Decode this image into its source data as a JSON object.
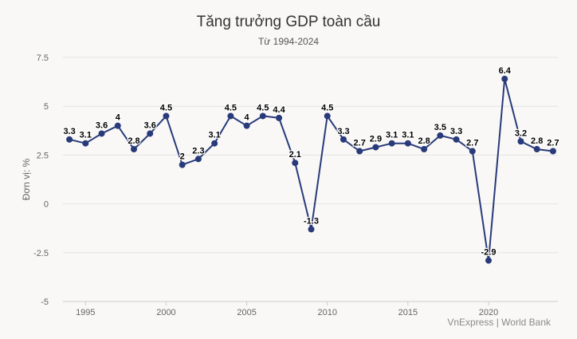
{
  "chart_data": {
    "type": "line",
    "title": "Tăng trưởng GDP toàn cầu",
    "subtitle": "Từ 1994-2024",
    "ylabel": "Đơn vị: %",
    "xlabel": "",
    "credit": "VnExpress | World Bank",
    "ylim": [
      -5,
      7.5
    ],
    "yticks": [
      7.5,
      5,
      2.5,
      0,
      -2.5,
      -5
    ],
    "ytick_labels": [
      "7.5",
      "5",
      "2.5",
      "0",
      "-2.5",
      "-5"
    ],
    "xlim": [
      1993.6,
      2024.3
    ],
    "xticks": [
      1995,
      2000,
      2005,
      2010,
      2015,
      2020
    ],
    "grid": true,
    "legend": "none",
    "series": [
      {
        "color": "#283a7a",
        "x": [
          1994,
          1995,
          1996,
          1997,
          1998,
          1999,
          2000,
          2001,
          2002,
          2003,
          2004,
          2005,
          2006,
          2007,
          2008,
          2009,
          2010,
          2011,
          2012,
          2013,
          2014,
          2015,
          2016,
          2017,
          2018,
          2019,
          2020,
          2021,
          2022,
          2023,
          2024
        ],
        "values": [
          3.3,
          3.1,
          3.6,
          4,
          2.8,
          3.6,
          4.5,
          2,
          2.3,
          3.1,
          4.5,
          4,
          4.5,
          4.4,
          2.1,
          -1.3,
          4.5,
          3.3,
          2.7,
          2.9,
          3.1,
          3.1,
          2.8,
          3.5,
          3.3,
          2.7,
          -2.9,
          6.4,
          3.2,
          2.8,
          2.7
        ],
        "labels": [
          "3.3",
          "3.1",
          "3.6",
          "4",
          "2.8",
          "3.6",
          "4.5",
          "2",
          "2.3",
          "3.1",
          "4.5",
          "4",
          "4.5",
          "4.4",
          "2.1",
          "-1.3",
          "4.5",
          "3.3",
          "2.7",
          "2.9",
          "3.1",
          "3.1",
          "2.8",
          "3.5",
          "3.3",
          "2.7",
          "-2.9",
          "6.4",
          "3.2",
          "2.8",
          "2.7"
        ]
      }
    ]
  }
}
